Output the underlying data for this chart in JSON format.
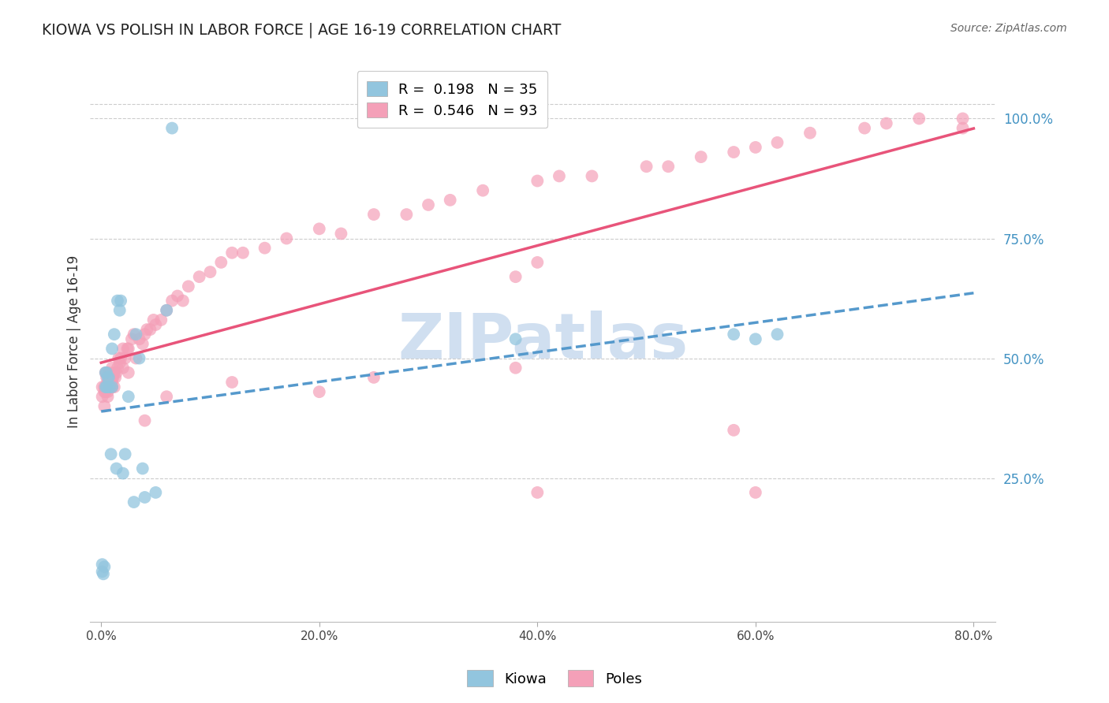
{
  "title": "KIOWA VS POLISH IN LABOR FORCE | AGE 16-19 CORRELATION CHART",
  "source_text": "Source: ZipAtlas.com",
  "ylabel": "In Labor Force | Age 16-19",
  "xlim": [
    -0.01,
    0.82
  ],
  "ylim": [
    -0.05,
    1.12
  ],
  "xtick_vals": [
    0.0,
    0.2,
    0.4,
    0.6,
    0.8
  ],
  "xtick_labels": [
    "0.0%",
    "20.0%",
    "40.0%",
    "60.0%",
    "80.0%"
  ],
  "ytick_vals_right": [
    1.0,
    0.75,
    0.5,
    0.25
  ],
  "ytick_labels_right": [
    "100.0%",
    "75.0%",
    "50.0%",
    "25.0%"
  ],
  "kiowa_color": "#92c5de",
  "poles_color": "#f4a0b8",
  "kiowa_line_color": "#5599cc",
  "poles_line_color": "#e8547a",
  "watermark": "ZIPatlas",
  "watermark_color": "#d0dff0",
  "background_color": "#ffffff",
  "grid_color": "#cccccc",
  "kiowa_x": [
    0.001,
    0.001,
    0.002,
    0.003,
    0.004,
    0.004,
    0.005,
    0.005,
    0.006,
    0.006,
    0.007,
    0.008,
    0.009,
    0.01,
    0.01,
    0.012,
    0.014,
    0.015,
    0.017,
    0.018,
    0.02,
    0.022,
    0.025,
    0.03,
    0.032,
    0.035,
    0.038,
    0.04,
    0.05,
    0.06,
    0.065,
    0.38,
    0.58,
    0.6,
    0.62
  ],
  "kiowa_y": [
    0.055,
    0.07,
    0.05,
    0.065,
    0.44,
    0.47,
    0.44,
    0.47,
    0.44,
    0.46,
    0.46,
    0.44,
    0.3,
    0.44,
    0.52,
    0.55,
    0.27,
    0.62,
    0.6,
    0.62,
    0.26,
    0.3,
    0.42,
    0.2,
    0.55,
    0.5,
    0.27,
    0.21,
    0.22,
    0.6,
    0.98,
    0.54,
    0.55,
    0.54,
    0.55
  ],
  "poles_x": [
    0.001,
    0.001,
    0.003,
    0.003,
    0.004,
    0.004,
    0.005,
    0.005,
    0.006,
    0.006,
    0.007,
    0.007,
    0.008,
    0.008,
    0.009,
    0.009,
    0.01,
    0.01,
    0.01,
    0.011,
    0.012,
    0.012,
    0.013,
    0.014,
    0.015,
    0.016,
    0.017,
    0.018,
    0.02,
    0.02,
    0.022,
    0.024,
    0.025,
    0.028,
    0.03,
    0.032,
    0.035,
    0.038,
    0.04,
    0.042,
    0.045,
    0.048,
    0.05,
    0.055,
    0.06,
    0.065,
    0.07,
    0.075,
    0.08,
    0.09,
    0.1,
    0.11,
    0.12,
    0.13,
    0.15,
    0.17,
    0.2,
    0.22,
    0.25,
    0.28,
    0.3,
    0.32,
    0.35,
    0.4,
    0.42,
    0.45,
    0.5,
    0.52,
    0.55,
    0.58,
    0.6,
    0.62,
    0.65,
    0.7,
    0.72,
    0.75,
    0.003,
    0.006,
    0.01,
    0.025,
    0.04,
    0.06,
    0.12,
    0.2,
    0.25,
    0.38,
    0.4,
    0.6,
    0.38,
    0.4,
    0.79,
    0.79,
    0.58
  ],
  "poles_y": [
    0.42,
    0.44,
    0.43,
    0.44,
    0.43,
    0.47,
    0.44,
    0.46,
    0.43,
    0.45,
    0.44,
    0.47,
    0.44,
    0.45,
    0.44,
    0.46,
    0.44,
    0.46,
    0.48,
    0.46,
    0.44,
    0.47,
    0.46,
    0.47,
    0.48,
    0.5,
    0.49,
    0.5,
    0.48,
    0.52,
    0.5,
    0.52,
    0.52,
    0.54,
    0.55,
    0.5,
    0.54,
    0.53,
    0.55,
    0.56,
    0.56,
    0.58,
    0.57,
    0.58,
    0.6,
    0.62,
    0.63,
    0.62,
    0.65,
    0.67,
    0.68,
    0.7,
    0.72,
    0.72,
    0.73,
    0.75,
    0.77,
    0.76,
    0.8,
    0.8,
    0.82,
    0.83,
    0.85,
    0.87,
    0.88,
    0.88,
    0.9,
    0.9,
    0.92,
    0.93,
    0.94,
    0.95,
    0.97,
    0.98,
    0.99,
    1.0,
    0.4,
    0.42,
    0.45,
    0.47,
    0.37,
    0.42,
    0.45,
    0.43,
    0.46,
    0.48,
    0.22,
    0.22,
    0.67,
    0.7,
    1.0,
    0.98,
    0.35
  ]
}
